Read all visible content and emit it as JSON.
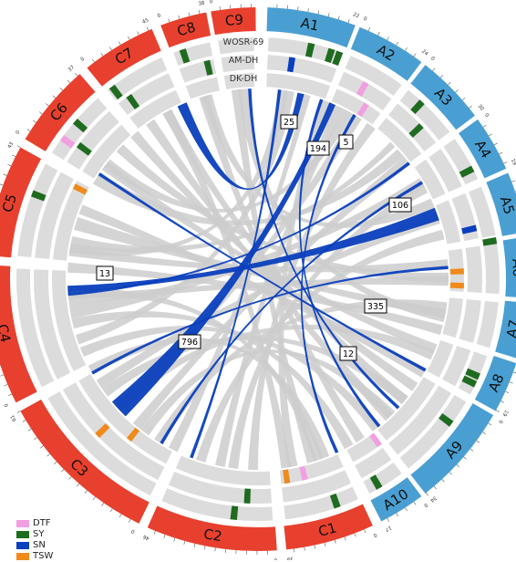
{
  "colors": {
    "a_genome": "#4a9fd2",
    "c_genome": "#e8402e",
    "track_bg": "#dcdcdc",
    "link_grey": "#cccccc",
    "link_blue": "#0a3fbd",
    "DTF": "#f0a0e0",
    "SY": "#1f6b1f",
    "SN": "#0a3fbd",
    "TSW": "#f08a1c"
  },
  "chromosomes": [
    {
      "name": "A1",
      "start": "0",
      "end": "22"
    },
    {
      "name": "A2",
      "start": "0",
      "end": "24"
    },
    {
      "name": "A3",
      "start": "0",
      "end": "30"
    },
    {
      "name": "A4",
      "start": "0",
      "end": "19"
    },
    {
      "name": "A5",
      "start": "0",
      "end": "23"
    },
    {
      "name": "A6",
      "start": "0",
      "end": "24"
    },
    {
      "name": "A7",
      "start": "0",
      "end": "24"
    },
    {
      "name": "A8",
      "start": "0",
      "end": "19"
    },
    {
      "name": "A9",
      "start": "0",
      "end": "34"
    },
    {
      "name": "A10",
      "start": "0",
      "end": "17"
    },
    {
      "name": "C1",
      "start": "0",
      "end": "39"
    },
    {
      "name": "C2",
      "start": "0",
      "end": "46"
    },
    {
      "name": "C3",
      "start": "0",
      "end": "61"
    },
    {
      "name": "C4",
      "start": "0",
      "end": "49"
    },
    {
      "name": "C5",
      "start": "0",
      "end": "43"
    },
    {
      "name": "C6",
      "start": "0",
      "end": "37"
    },
    {
      "name": "C7",
      "start": "0",
      "end": "45"
    },
    {
      "name": "C8",
      "start": "0",
      "end": "38"
    },
    {
      "name": "C9",
      "start": "0",
      "end": "48"
    }
  ],
  "tracks": [
    "WOSR-69",
    "AM-DH",
    "DK-DH"
  ],
  "link_labels": [
    "25",
    "194",
    "5",
    "106",
    "13",
    "335",
    "796",
    "12"
  ],
  "legend": [
    {
      "label": "DTF",
      "color": "#f0a0e0"
    },
    {
      "label": "SY",
      "color": "#1f6b1f"
    },
    {
      "label": "SN",
      "color": "#0a3fbd"
    },
    {
      "label": "TSW",
      "color": "#f08a1c"
    }
  ]
}
